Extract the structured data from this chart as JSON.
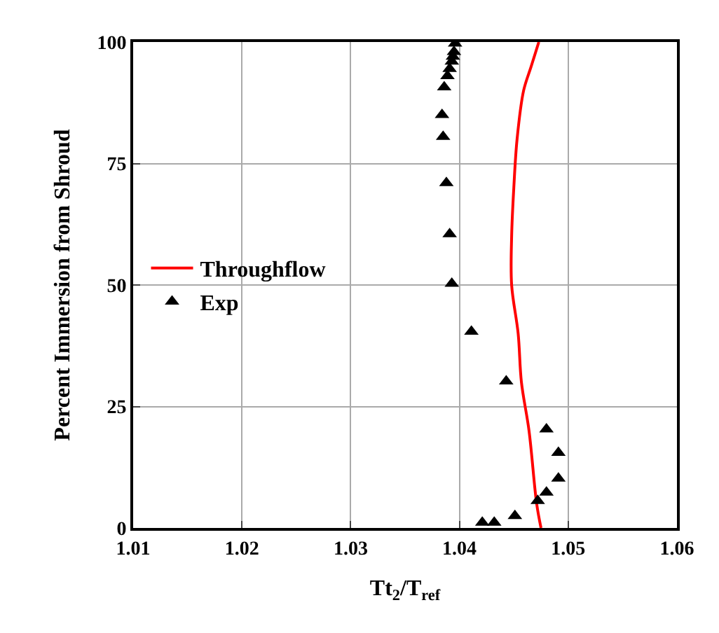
{
  "chart_data": {
    "type": "line",
    "xlabel": "Tt$_{2}$/T$_{ref}$",
    "ylabel": "Percent Immersion from Shroud",
    "xlim": [
      1.01,
      1.06
    ],
    "xticks": [
      1.01,
      1.02,
      1.03,
      1.04,
      1.05,
      1.06
    ],
    "ylim": [
      0,
      100
    ],
    "yticks": [
      0,
      25,
      50,
      75,
      100
    ],
    "grid": true,
    "legend": "left",
    "series": [
      {
        "name": "Throughflow",
        "color": "#ff0000",
        "marker": "none",
        "line_style": "solid",
        "x": [
          1.0475,
          1.0471,
          1.0464,
          1.0457,
          1.0454,
          1.0448,
          1.0448,
          1.045,
          1.0453,
          1.0459,
          1.0466,
          1.0473
        ],
        "values": [
          0,
          5,
          20,
          30,
          40,
          50,
          60,
          70,
          80,
          90,
          95,
          100
        ]
      },
      {
        "name": "Exp",
        "type": "scatter",
        "color": "#000000",
        "marker": "triangle",
        "x": [
          1.0421,
          1.0432,
          1.0451,
          1.0472,
          1.048,
          1.0491,
          1.0491,
          1.048,
          1.0443,
          1.0411,
          1.0393,
          1.0391,
          1.0388,
          1.0385,
          1.0384,
          1.0386,
          1.0389,
          1.0391,
          1.0393,
          1.0394,
          1.0395,
          1.0396
        ],
        "values": [
          1.1,
          1.1,
          2.5,
          5.6,
          7.3,
          10.2,
          15.5,
          20.3,
          30.2,
          40.4,
          50.3,
          60.5,
          71,
          80.5,
          85,
          90.7,
          93,
          94.5,
          96,
          97,
          98,
          99.7
        ]
      }
    ]
  }
}
